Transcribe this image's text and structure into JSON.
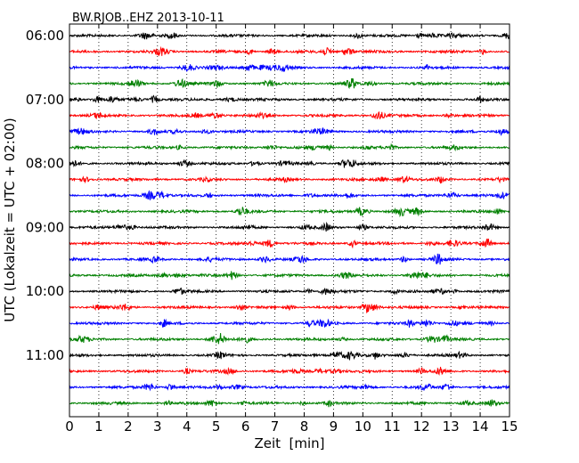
{
  "chart_data": {
    "type": "line",
    "title": "BW.RJOB..EHZ 2013-10-11",
    "xlabel": "Zeit  [min]",
    "ylabel": "UTC (Lokalzeit = UTC + 02:00)",
    "xlim": [
      0,
      15
    ],
    "x_ticks": [
      "0",
      "1",
      "2",
      "3",
      "4",
      "5",
      "6",
      "7",
      "8",
      "9",
      "10",
      "11",
      "12",
      "13",
      "14",
      "15"
    ],
    "y_tick_labels": [
      "06:00",
      "07:00",
      "08:00",
      "09:00",
      "10:00",
      "11:00"
    ],
    "grid": {
      "x_vertical_dotted": true,
      "y": false
    },
    "trace_start": "06:00",
    "trace_interval": "15 min",
    "trace_colors": [
      "#000000",
      "#ff0000",
      "#0000ff",
      "#008000"
    ],
    "series": [
      {
        "label": "06:00",
        "color": "#000000"
      },
      {
        "label": "06:15",
        "color": "#ff0000"
      },
      {
        "label": "06:30",
        "color": "#0000ff"
      },
      {
        "label": "06:45",
        "color": "#008000"
      },
      {
        "label": "07:00",
        "color": "#000000"
      },
      {
        "label": "07:15",
        "color": "#ff0000"
      },
      {
        "label": "07:30",
        "color": "#0000ff"
      },
      {
        "label": "07:45",
        "color": "#008000"
      },
      {
        "label": "08:00",
        "color": "#000000"
      },
      {
        "label": "08:15",
        "color": "#ff0000"
      },
      {
        "label": "08:30",
        "color": "#0000ff"
      },
      {
        "label": "08:45",
        "color": "#008000"
      },
      {
        "label": "09:00",
        "color": "#000000"
      },
      {
        "label": "09:15",
        "color": "#ff0000"
      },
      {
        "label": "09:30",
        "color": "#0000ff"
      },
      {
        "label": "09:45",
        "color": "#008000"
      },
      {
        "label": "10:00",
        "color": "#000000"
      },
      {
        "label": "10:15",
        "color": "#ff0000"
      },
      {
        "label": "10:30",
        "color": "#0000ff"
      },
      {
        "label": "10:45",
        "color": "#008000"
      },
      {
        "label": "11:00",
        "color": "#000000"
      },
      {
        "label": "11:15",
        "color": "#ff0000"
      },
      {
        "label": "11:30",
        "color": "#0000ff"
      },
      {
        "label": "11:45",
        "color": "#008000"
      }
    ]
  }
}
